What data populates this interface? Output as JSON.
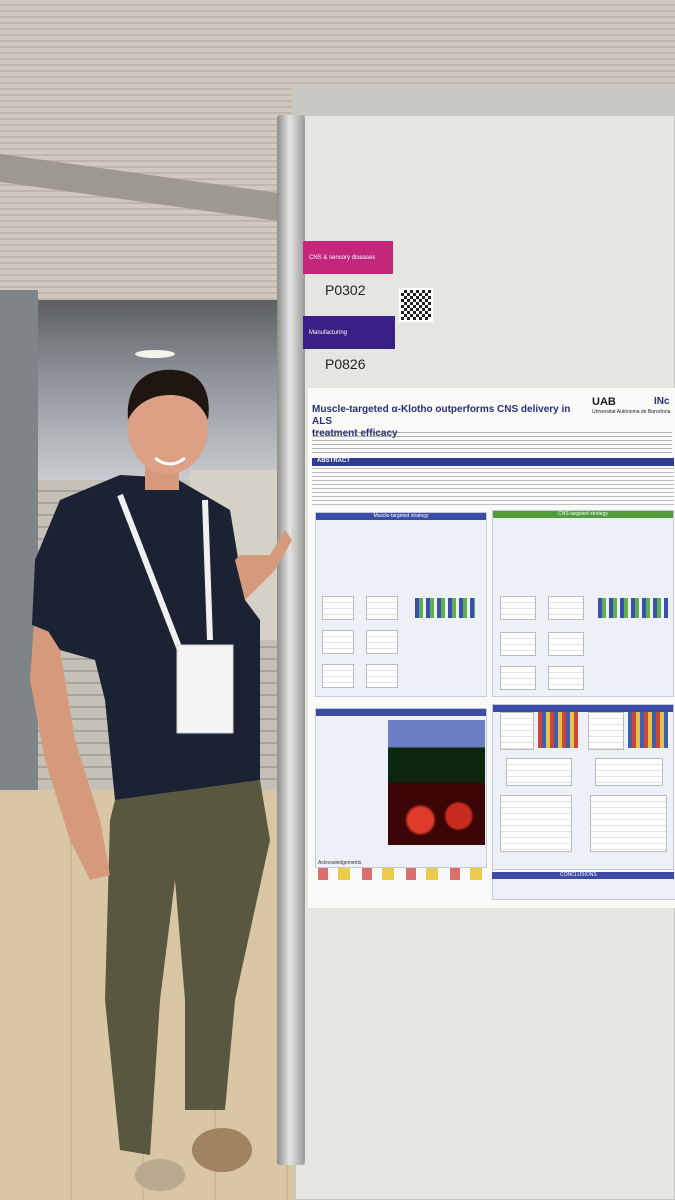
{
  "poster_board": {
    "category_label": "CNS & sensory diseases",
    "category_code": "P0302",
    "manufacturing_label": "Manufacturing",
    "manufacturing_code": "P0826"
  },
  "poster": {
    "title_line1": "Muscle-targeted α-Klotho outperforms CNS delivery in ALS",
    "title_line2": "treatment efficacy",
    "institution": "UAB",
    "institution_sub": "Universitat Autònoma de Barcelona",
    "institute_logo": "INc",
    "abstract_label": "ABSTRACT",
    "panel_left_header": "Muscle-targeted strategy",
    "panel_right_header": "CNS-targeted strategy",
    "acknowledgements_label": "Acknowledgements",
    "conclusions_label": "CONCLUSIONS"
  },
  "colors": {
    "category_tag": "#c4267c",
    "manufacturing_tag": "#3a1f86",
    "poster_title": "#2a2f7a",
    "shirt": "#1b2233",
    "pants": "#57583f"
  }
}
